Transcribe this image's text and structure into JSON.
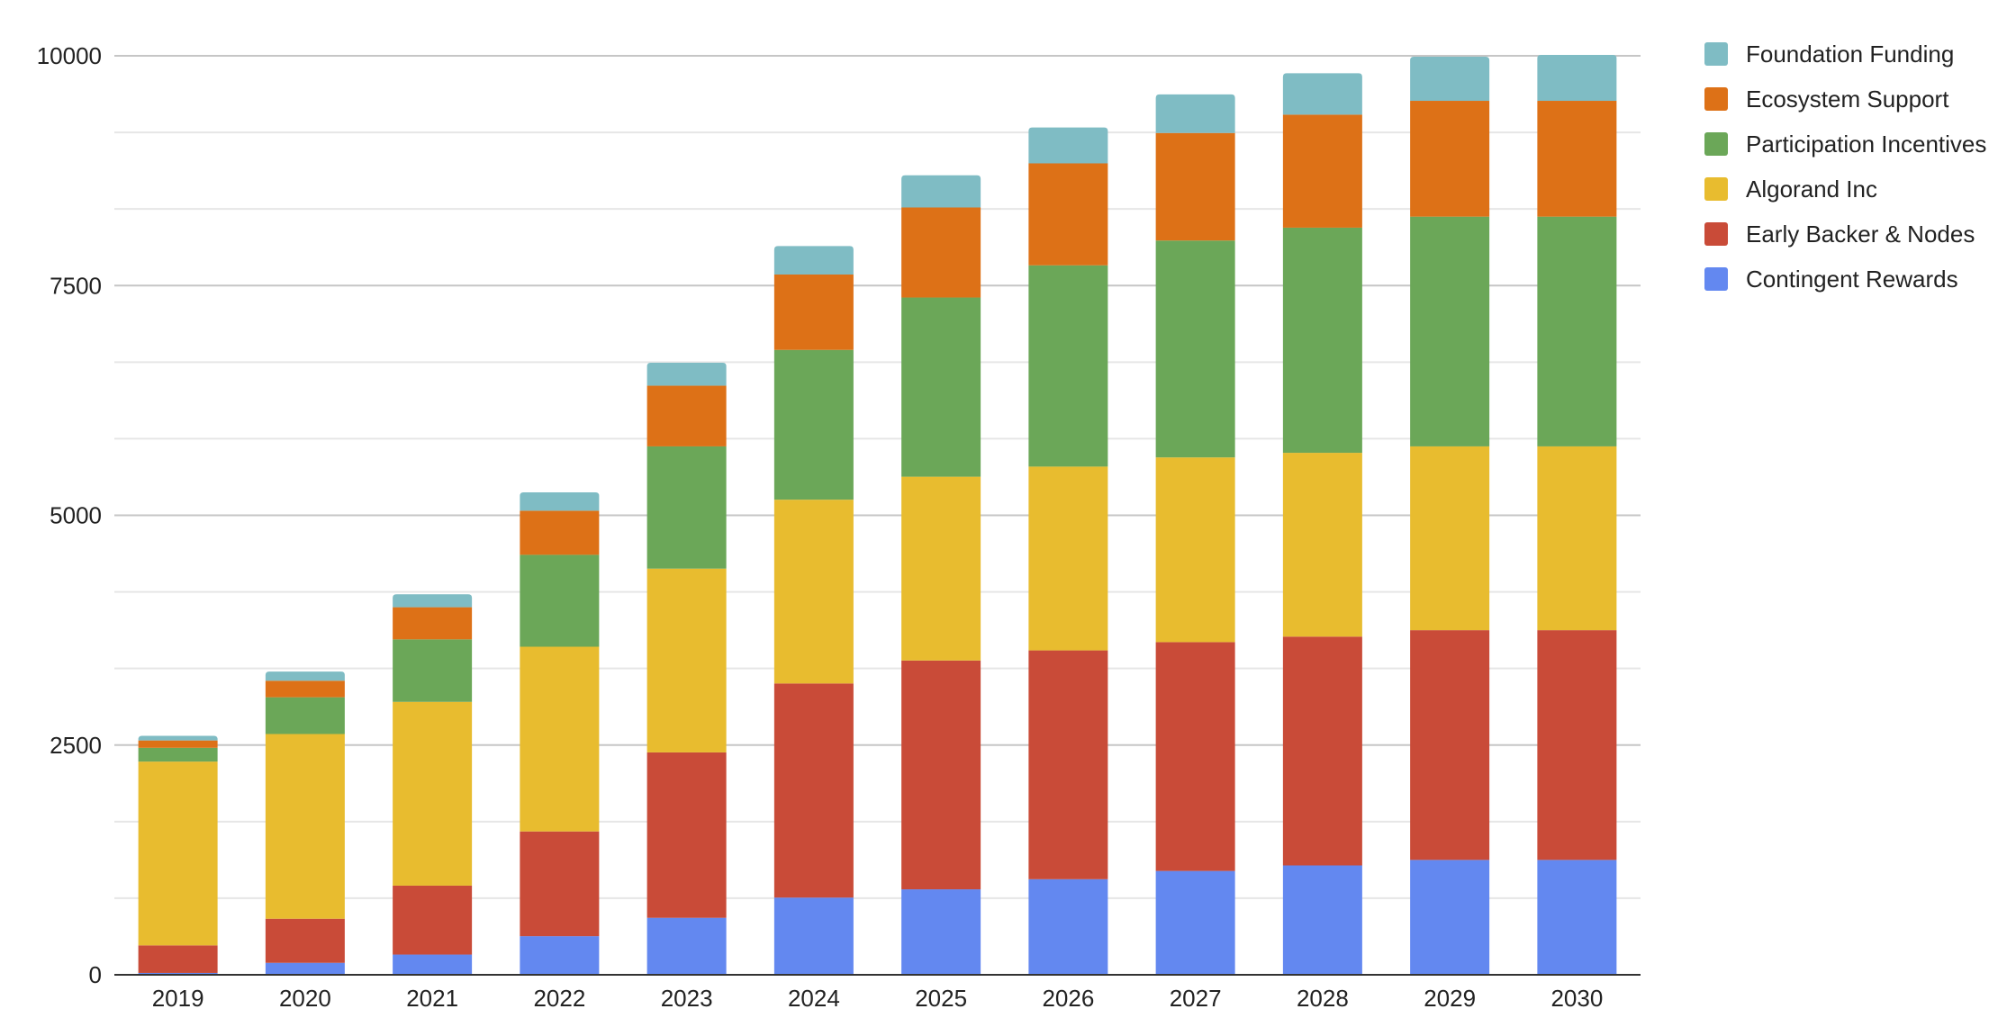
{
  "chart_data": {
    "type": "bar",
    "stacked": true,
    "title": "",
    "xlabel": "",
    "ylabel": "",
    "ylim": [
      0,
      10000
    ],
    "y_ticks": [
      "0",
      "2500",
      "5000",
      "7500",
      "10000"
    ],
    "grid": "horizontal major and minor lines",
    "legend_position": "right",
    "categories": [
      "2019",
      "2020",
      "2021",
      "2022",
      "2023",
      "2024",
      "2025",
      "2026",
      "2027",
      "2028",
      "2029",
      "2030"
    ],
    "series": [
      {
        "name": "Contingent Rewards",
        "color": "#6388F0",
        "values": [
          20,
          130,
          220,
          420,
          620,
          840,
          930,
          1040,
          1130,
          1190,
          1250,
          1250
        ]
      },
      {
        "name": "Early Backer & Nodes",
        "color": "#C94B38",
        "values": [
          300,
          480,
          750,
          1140,
          1800,
          2330,
          2490,
          2490,
          2490,
          2490,
          2500,
          2500
        ]
      },
      {
        "name": "Algorand Inc",
        "color": "#E8BC2F",
        "values": [
          2000,
          2010,
          2000,
          2010,
          2000,
          2000,
          2000,
          2000,
          2010,
          2000,
          2000,
          2000
        ]
      },
      {
        "name": "Participation Incentives",
        "color": "#6BA758",
        "values": [
          150,
          400,
          680,
          1000,
          1330,
          1630,
          1950,
          2190,
          2360,
          2450,
          2500,
          2500
        ]
      },
      {
        "name": "Ecosystem Support",
        "color": "#DD7117",
        "values": [
          80,
          180,
          350,
          480,
          660,
          820,
          980,
          1110,
          1170,
          1230,
          1260,
          1260
        ]
      },
      {
        "name": "Foundation Funding",
        "color": "#7FBCC4",
        "values": [
          50,
          100,
          140,
          200,
          250,
          310,
          350,
          390,
          420,
          450,
          480,
          500
        ]
      }
    ]
  },
  "style": {
    "axis_color": "#333333",
    "major_grid_color": "#c6c6c6",
    "minor_grid_color": "#e6e6e6",
    "text_color": "#222222"
  }
}
